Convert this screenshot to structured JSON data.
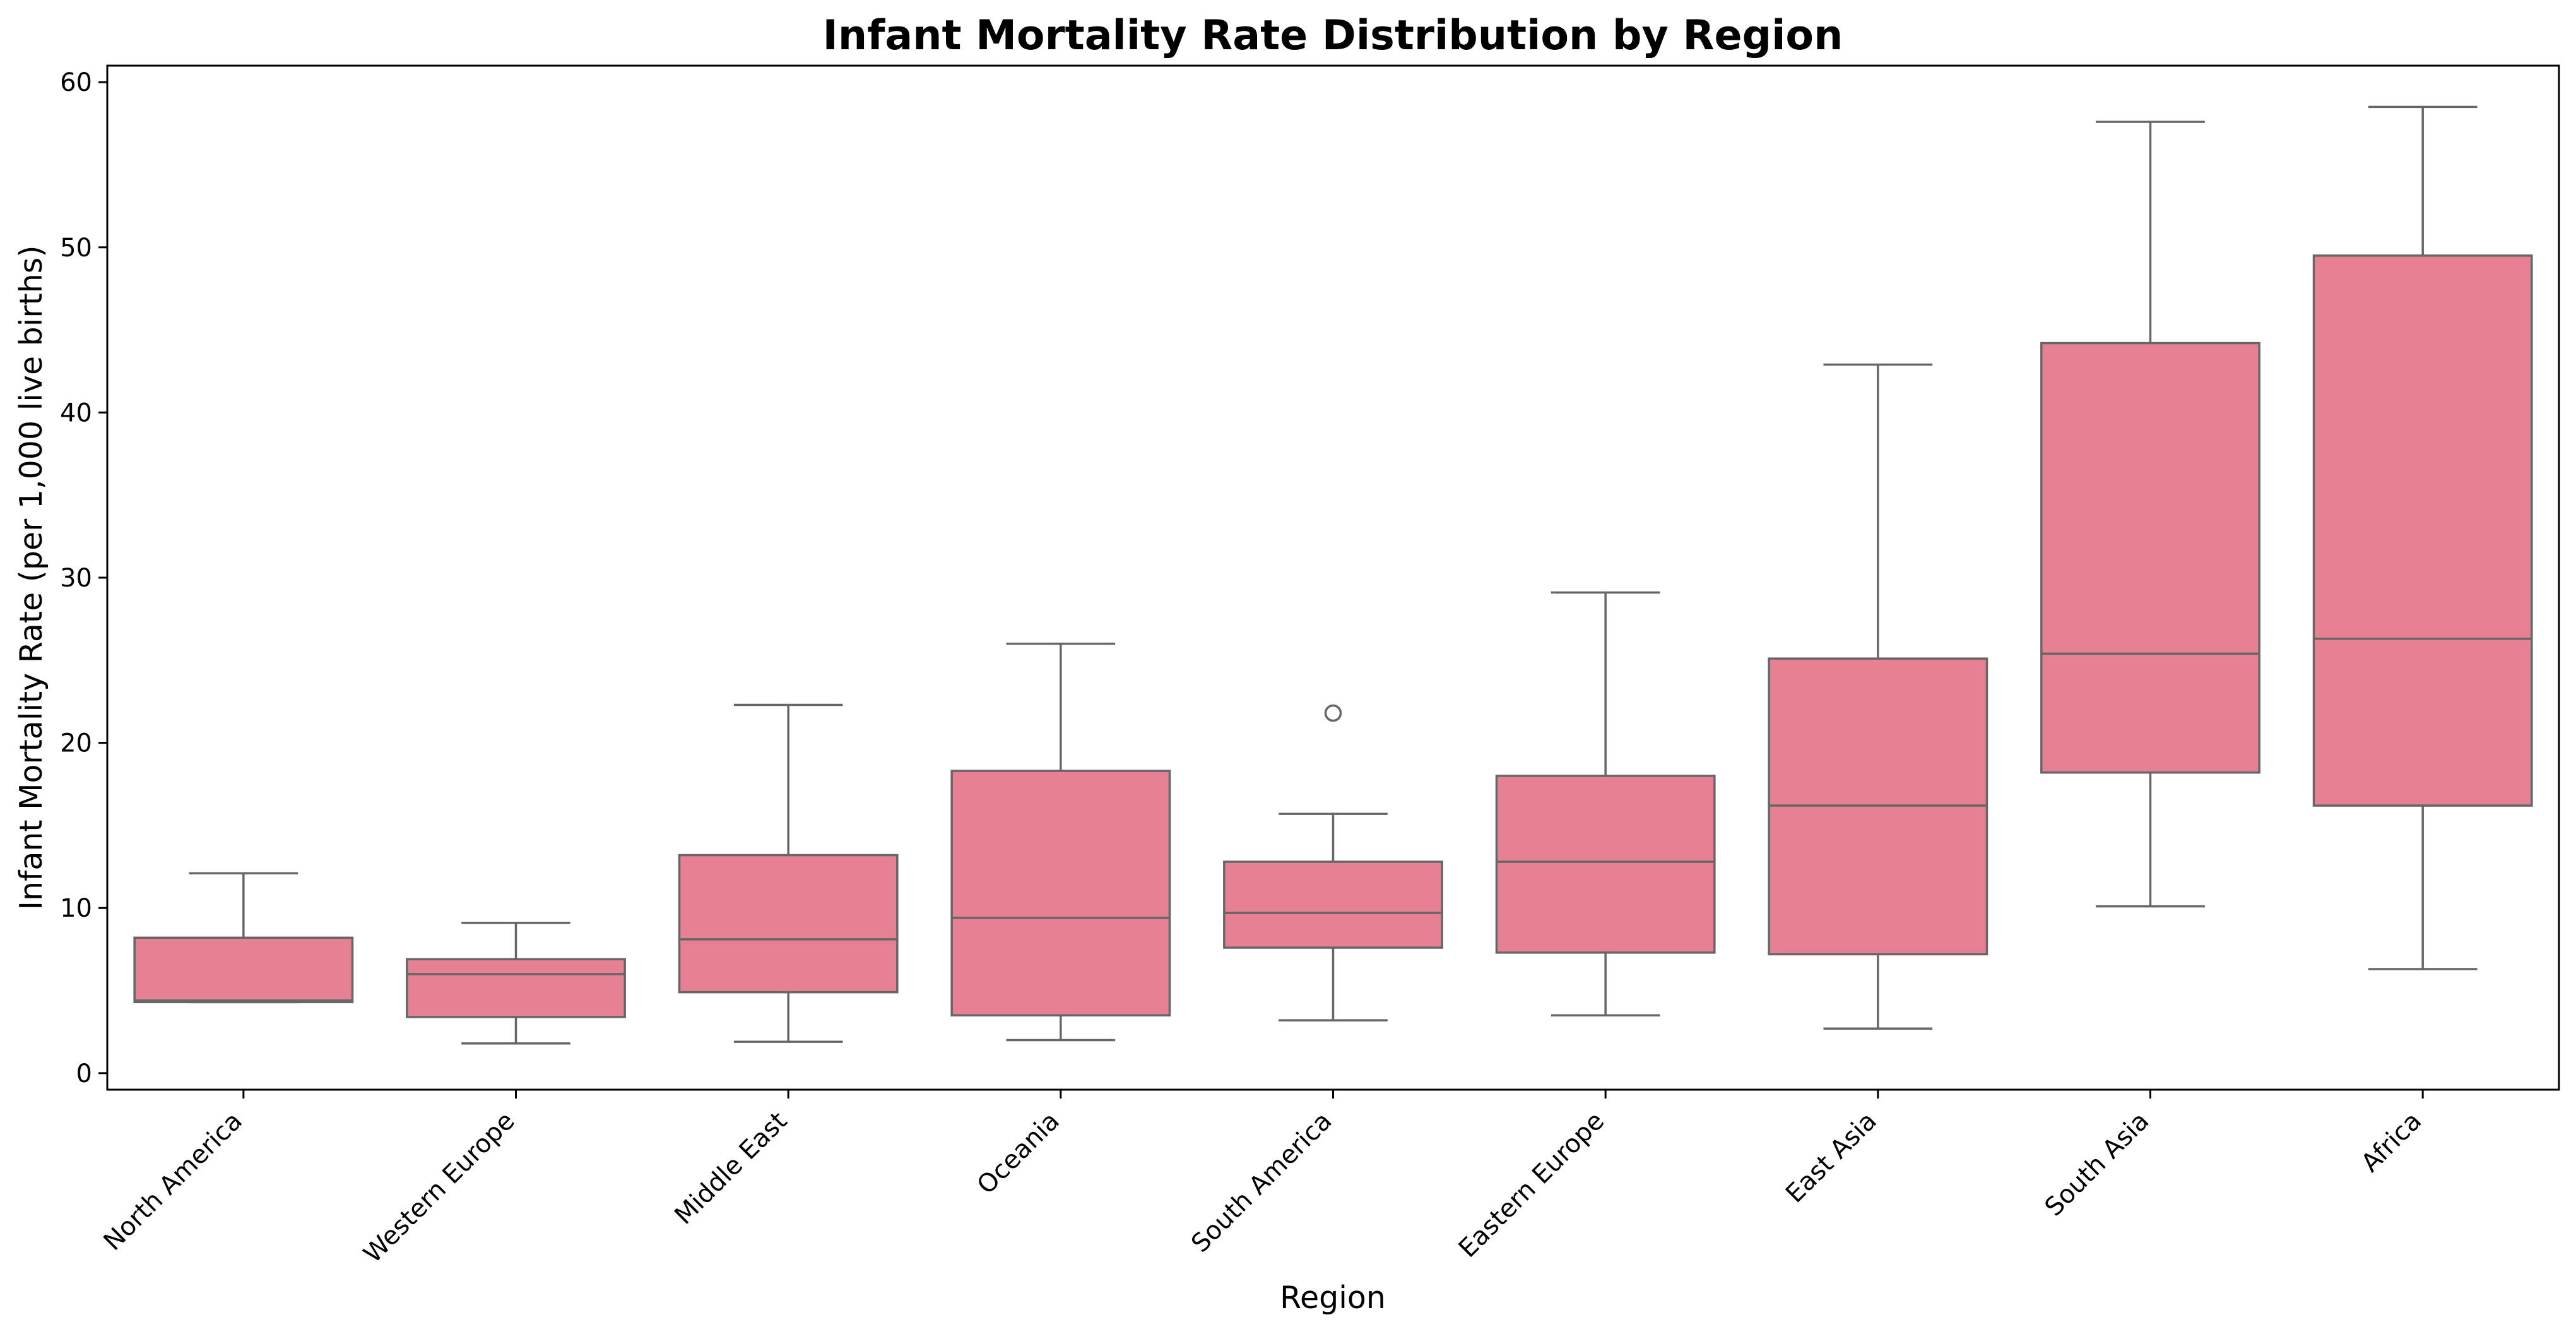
{
  "chart_data": {
    "type": "box",
    "title": "Infant Mortality Rate Distribution by Region",
    "xlabel": "Region",
    "ylabel": "Infant Mortality Rate (per 1,000 live births)",
    "ylim": [
      -1,
      61
    ],
    "yticks": [
      0,
      10,
      20,
      30,
      40,
      50,
      60
    ],
    "box_color": "#e68193",
    "line_color": "#666666",
    "grid": false,
    "categories": [
      "North America",
      "Western Europe",
      "Middle East",
      "Oceania",
      "South America",
      "Eastern Europe",
      "East Asia",
      "South Asia",
      "Africa"
    ],
    "boxes": [
      {
        "category": "North America",
        "whislo": 4.3,
        "q1": 4.3,
        "med": 4.4,
        "q3": 8.2,
        "whishi": 12.1,
        "fliers": []
      },
      {
        "category": "Western Europe",
        "whislo": 1.8,
        "q1": 3.4,
        "med": 6.0,
        "q3": 6.9,
        "whishi": 9.1,
        "fliers": []
      },
      {
        "category": "Middle East",
        "whislo": 1.9,
        "q1": 4.9,
        "med": 8.1,
        "q3": 13.2,
        "whishi": 22.3,
        "fliers": []
      },
      {
        "category": "Oceania",
        "whislo": 2.0,
        "q1": 3.5,
        "med": 9.4,
        "q3": 18.3,
        "whishi": 26.0,
        "fliers": []
      },
      {
        "category": "South America",
        "whislo": 3.2,
        "q1": 7.6,
        "med": 9.7,
        "q3": 12.8,
        "whishi": 15.7,
        "fliers": [
          21.8
        ]
      },
      {
        "category": "Eastern Europe",
        "whislo": 3.5,
        "q1": 7.3,
        "med": 12.8,
        "q3": 18.0,
        "whishi": 29.1,
        "fliers": []
      },
      {
        "category": "East Asia",
        "whislo": 2.7,
        "q1": 7.2,
        "med": 16.2,
        "q3": 25.1,
        "whishi": 42.9,
        "fliers": []
      },
      {
        "category": "South Asia",
        "whislo": 10.1,
        "q1": 18.2,
        "med": 25.4,
        "q3": 44.2,
        "whishi": 57.6,
        "fliers": []
      },
      {
        "category": "Africa",
        "whislo": 6.3,
        "q1": 16.2,
        "med": 26.3,
        "q3": 49.5,
        "whishi": 58.5,
        "fliers": []
      }
    ]
  }
}
